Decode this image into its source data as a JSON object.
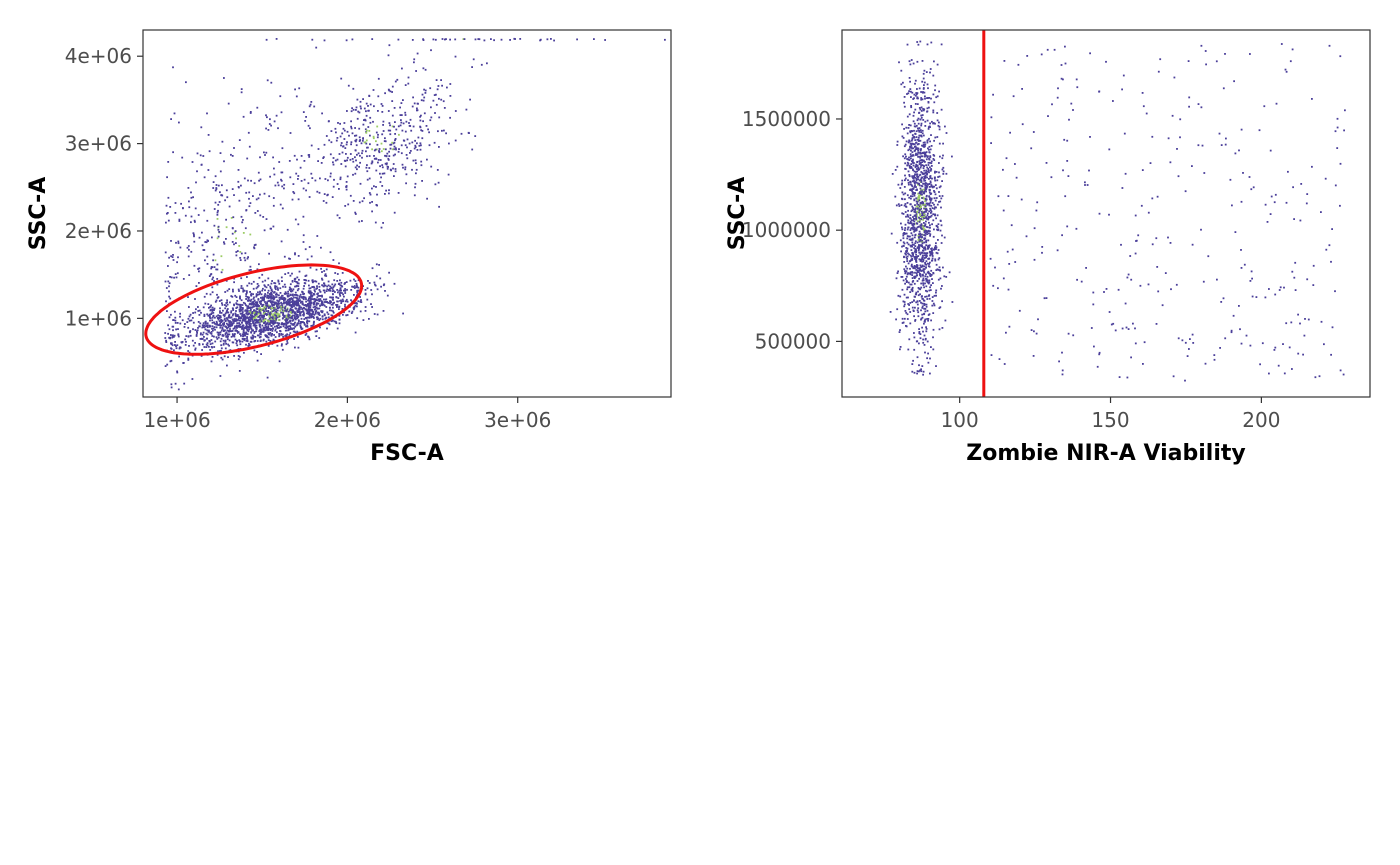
{
  "chart_data": [
    {
      "type": "scatter",
      "xlabel": "FSC-A",
      "ylabel": "SSC-A",
      "xlim": [
        800000,
        3900000
      ],
      "ylim": [
        100000,
        4300000
      ],
      "x_ticks": [
        1000000,
        2000000,
        3000000
      ],
      "x_tick_labels": [
        "1e+06",
        "2e+06",
        "3e+06"
      ],
      "y_ticks": [
        1000000,
        2000000,
        3000000,
        4000000
      ],
      "y_tick_labels": [
        "1e+06",
        "2e+06",
        "3e+06",
        "4e+06"
      ],
      "grid": false,
      "point_color": "#4b3f9a",
      "density_color": "#9ccc65",
      "gate_color": "#ee1111",
      "populations": [
        {
          "n": 2100,
          "center": [
            1550000,
            1050000
          ],
          "sd": [
            260000,
            200000
          ],
          "corr": 0.55,
          "xmin": 930000,
          "ymin": 300000
        },
        {
          "n": 500,
          "center": [
            2200000,
            3050000
          ],
          "sd": [
            220000,
            380000
          ],
          "corr": 0.3
        },
        {
          "n": 450,
          "center": [
            1300000,
            1900000
          ],
          "sd": [
            280000,
            750000
          ],
          "corr": 0.2,
          "xmin": 930000
        },
        {
          "n": 40,
          "center": [
            2700000,
            4200000
          ],
          "sd": [
            450000,
            10000
          ],
          "corr": 0,
          "ymax": 4200000
        }
      ],
      "gate": {
        "type": "ellipse",
        "center": [
          1450000,
          1100000
        ],
        "semi_axes": [
          720000,
          380000
        ],
        "angle_deg": 34
      }
    },
    {
      "type": "scatter",
      "xlabel": "Zombie NIR-A Viability",
      "ylabel": "SSC-A",
      "xlim": [
        61,
        236
      ],
      "ylim": [
        250000,
        1900000
      ],
      "x_ticks": [
        100,
        150,
        200
      ],
      "x_tick_labels": [
        "100",
        "150",
        "200"
      ],
      "y_ticks": [
        500000,
        1000000,
        1500000
      ],
      "y_tick_labels": [
        "500000",
        "1000000",
        "1500000"
      ],
      "grid": false,
      "point_color": "#4b3f9a",
      "density_color": "#9ccc65",
      "gate_color": "#ee1111",
      "populations": [
        {
          "n": 1500,
          "center": [
            87,
            1080000
          ],
          "sd": [
            3.3,
            290000
          ],
          "corr": 0,
          "ymin": 350000,
          "ymax": 1850000
        },
        {
          "n": 330,
          "uniform": true,
          "xrange": [
            110,
            228
          ],
          "yrange": [
            320000,
            1850000
          ]
        }
      ],
      "gate": {
        "type": "vline",
        "x": 108
      }
    }
  ]
}
